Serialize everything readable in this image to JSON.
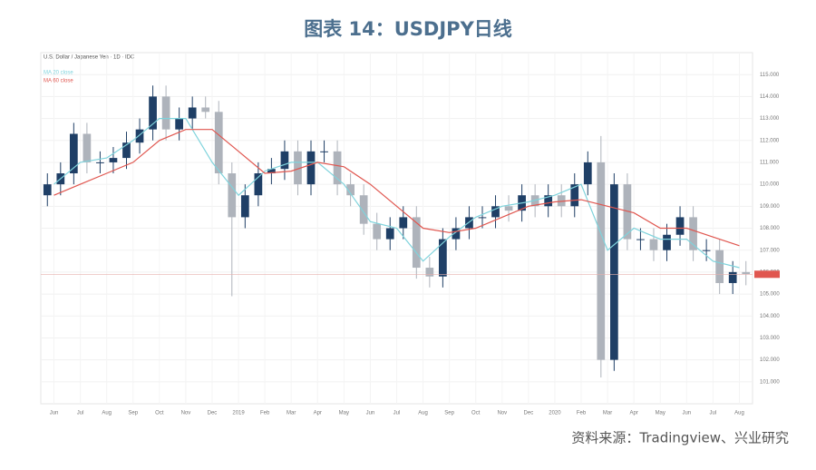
{
  "chart_data": {
    "type": "candlestick",
    "title": "图表 14：USDJPY日线",
    "source": "资料来源：Tradingview、兴业研究",
    "instrument": "U.S. Dollar / Japanese Yen · 1D · IDC",
    "months": [
      "Jun",
      "Jul",
      "Aug",
      "Sep",
      "Oct",
      "Nov",
      "Dec",
      "2019",
      "Feb",
      "Mar",
      "Apr",
      "May",
      "Jun",
      "Jul",
      "Aug",
      "Sep",
      "Oct",
      "Nov",
      "Dec",
      "2020",
      "Feb",
      "Mar",
      "Apr",
      "May",
      "Jun",
      "Jul",
      "Aug"
    ],
    "open": [
      109.5,
      110.0,
      110.5,
      112.3,
      111.0,
      111.0,
      111.2,
      111.9,
      112.5,
      114.0,
      112.5,
      113.0,
      113.5,
      113.3,
      110.5,
      108.5,
      109.5,
      110.5,
      110.7,
      111.5,
      110.0,
      111.5,
      111.5,
      110.0,
      109.5,
      108.2,
      107.5,
      108.0,
      108.5,
      106.2,
      105.8,
      107.5,
      108.0,
      108.5,
      108.5,
      109.0,
      108.8,
      109.5,
      109.0,
      109.5,
      109.0,
      110.0,
      111.0,
      102.0,
      110.0,
      107.5,
      107.5,
      107.0,
      107.7,
      108.5,
      107.0,
      107.0,
      105.5,
      106.0
    ],
    "high": [
      110.5,
      111.0,
      112.8,
      112.8,
      111.5,
      111.7,
      112.4,
      113.0,
      114.5,
      114.5,
      113.5,
      114.0,
      114.0,
      113.8,
      111.0,
      110.0,
      111.0,
      111.2,
      112.0,
      112.0,
      112.0,
      112.0,
      112.0,
      110.5,
      110.0,
      108.7,
      108.5,
      109.0,
      109.0,
      106.7,
      108.0,
      108.5,
      109.0,
      109.0,
      109.5,
      109.5,
      110.0,
      110.0,
      110.0,
      110.0,
      110.5,
      111.5,
      112.2,
      110.5,
      110.5,
      108.0,
      108.0,
      108.2,
      109.0,
      109.0,
      107.5,
      107.5,
      106.5,
      106.5
    ],
    "low": [
      109.0,
      109.5,
      110.0,
      110.5,
      110.5,
      110.5,
      110.7,
      111.4,
      112.0,
      112.0,
      112.0,
      112.5,
      113.0,
      110.0,
      104.9,
      108.0,
      109.0,
      110.0,
      110.2,
      109.5,
      109.5,
      111.0,
      109.5,
      109.0,
      107.7,
      107.0,
      107.0,
      107.5,
      105.7,
      105.3,
      105.3,
      107.0,
      107.5,
      108.0,
      108.0,
      108.3,
      108.3,
      108.5,
      108.5,
      108.5,
      108.5,
      109.5,
      101.2,
      101.5,
      107.0,
      107.0,
      106.5,
      106.5,
      107.2,
      106.5,
      106.5,
      105.0,
      105.0,
      105.4
    ],
    "close": [
      110.0,
      110.5,
      112.3,
      111.0,
      111.0,
      111.2,
      111.9,
      112.5,
      114.0,
      112.5,
      113.0,
      113.5,
      113.3,
      110.5,
      108.5,
      109.5,
      110.5,
      110.7,
      111.5,
      110.0,
      111.5,
      111.5,
      110.0,
      109.5,
      108.2,
      107.5,
      108.0,
      108.5,
      106.2,
      105.8,
      107.5,
      108.0,
      108.5,
      108.5,
      109.0,
      108.8,
      109.5,
      109.0,
      109.5,
      109.0,
      110.0,
      111.0,
      102.0,
      110.0,
      107.5,
      107.5,
      107.0,
      107.7,
      108.5,
      107.0,
      107.0,
      105.5,
      106.0,
      105.9
    ],
    "up_color": "#1f3f66",
    "down_color": "#aeb3bb",
    "series": [
      {
        "name": "MA 20 close",
        "color": "#7fd3dc",
        "values": [
          110,
          111,
          111.2,
          112,
          113,
          113,
          111,
          109.5,
          110.6,
          111,
          111,
          110,
          108.3,
          108,
          106.5,
          107.6,
          108.5,
          109,
          109.2,
          109.5,
          110,
          107,
          108,
          107.5,
          107.5,
          106.5,
          106.2
        ]
      },
      {
        "name": "MA 60 close",
        "color": "#e0564f",
        "values": [
          109.5,
          110,
          110.5,
          111,
          112,
          112.5,
          112.5,
          111.5,
          110.5,
          110.6,
          111,
          110.8,
          110,
          109,
          108,
          107.8,
          108,
          108.5,
          109,
          109.2,
          109.3,
          109,
          108.7,
          108,
          108,
          107.6,
          107.2
        ]
      }
    ],
    "ylim": [
      100,
      116
    ],
    "yticks": [
      {
        "value": 101,
        "label": "101.000"
      },
      {
        "value": 102,
        "label": "102.000"
      },
      {
        "value": 103,
        "label": "103.000"
      },
      {
        "value": 104,
        "label": "104.000"
      },
      {
        "value": 105,
        "label": "105.000"
      },
      {
        "value": 106,
        "label": "106.000"
      },
      {
        "value": 107,
        "label": "107.000"
      },
      {
        "value": 108,
        "label": "108.000"
      },
      {
        "value": 109,
        "label": "109.000"
      },
      {
        "value": 110,
        "label": "110.000"
      },
      {
        "value": 111,
        "label": "111.000"
      },
      {
        "value": 112,
        "label": "112.000"
      },
      {
        "value": 113,
        "label": "113.000"
      },
      {
        "value": 114,
        "label": "114.000"
      },
      {
        "value": 115,
        "label": "115.000"
      }
    ],
    "grid": true
  }
}
